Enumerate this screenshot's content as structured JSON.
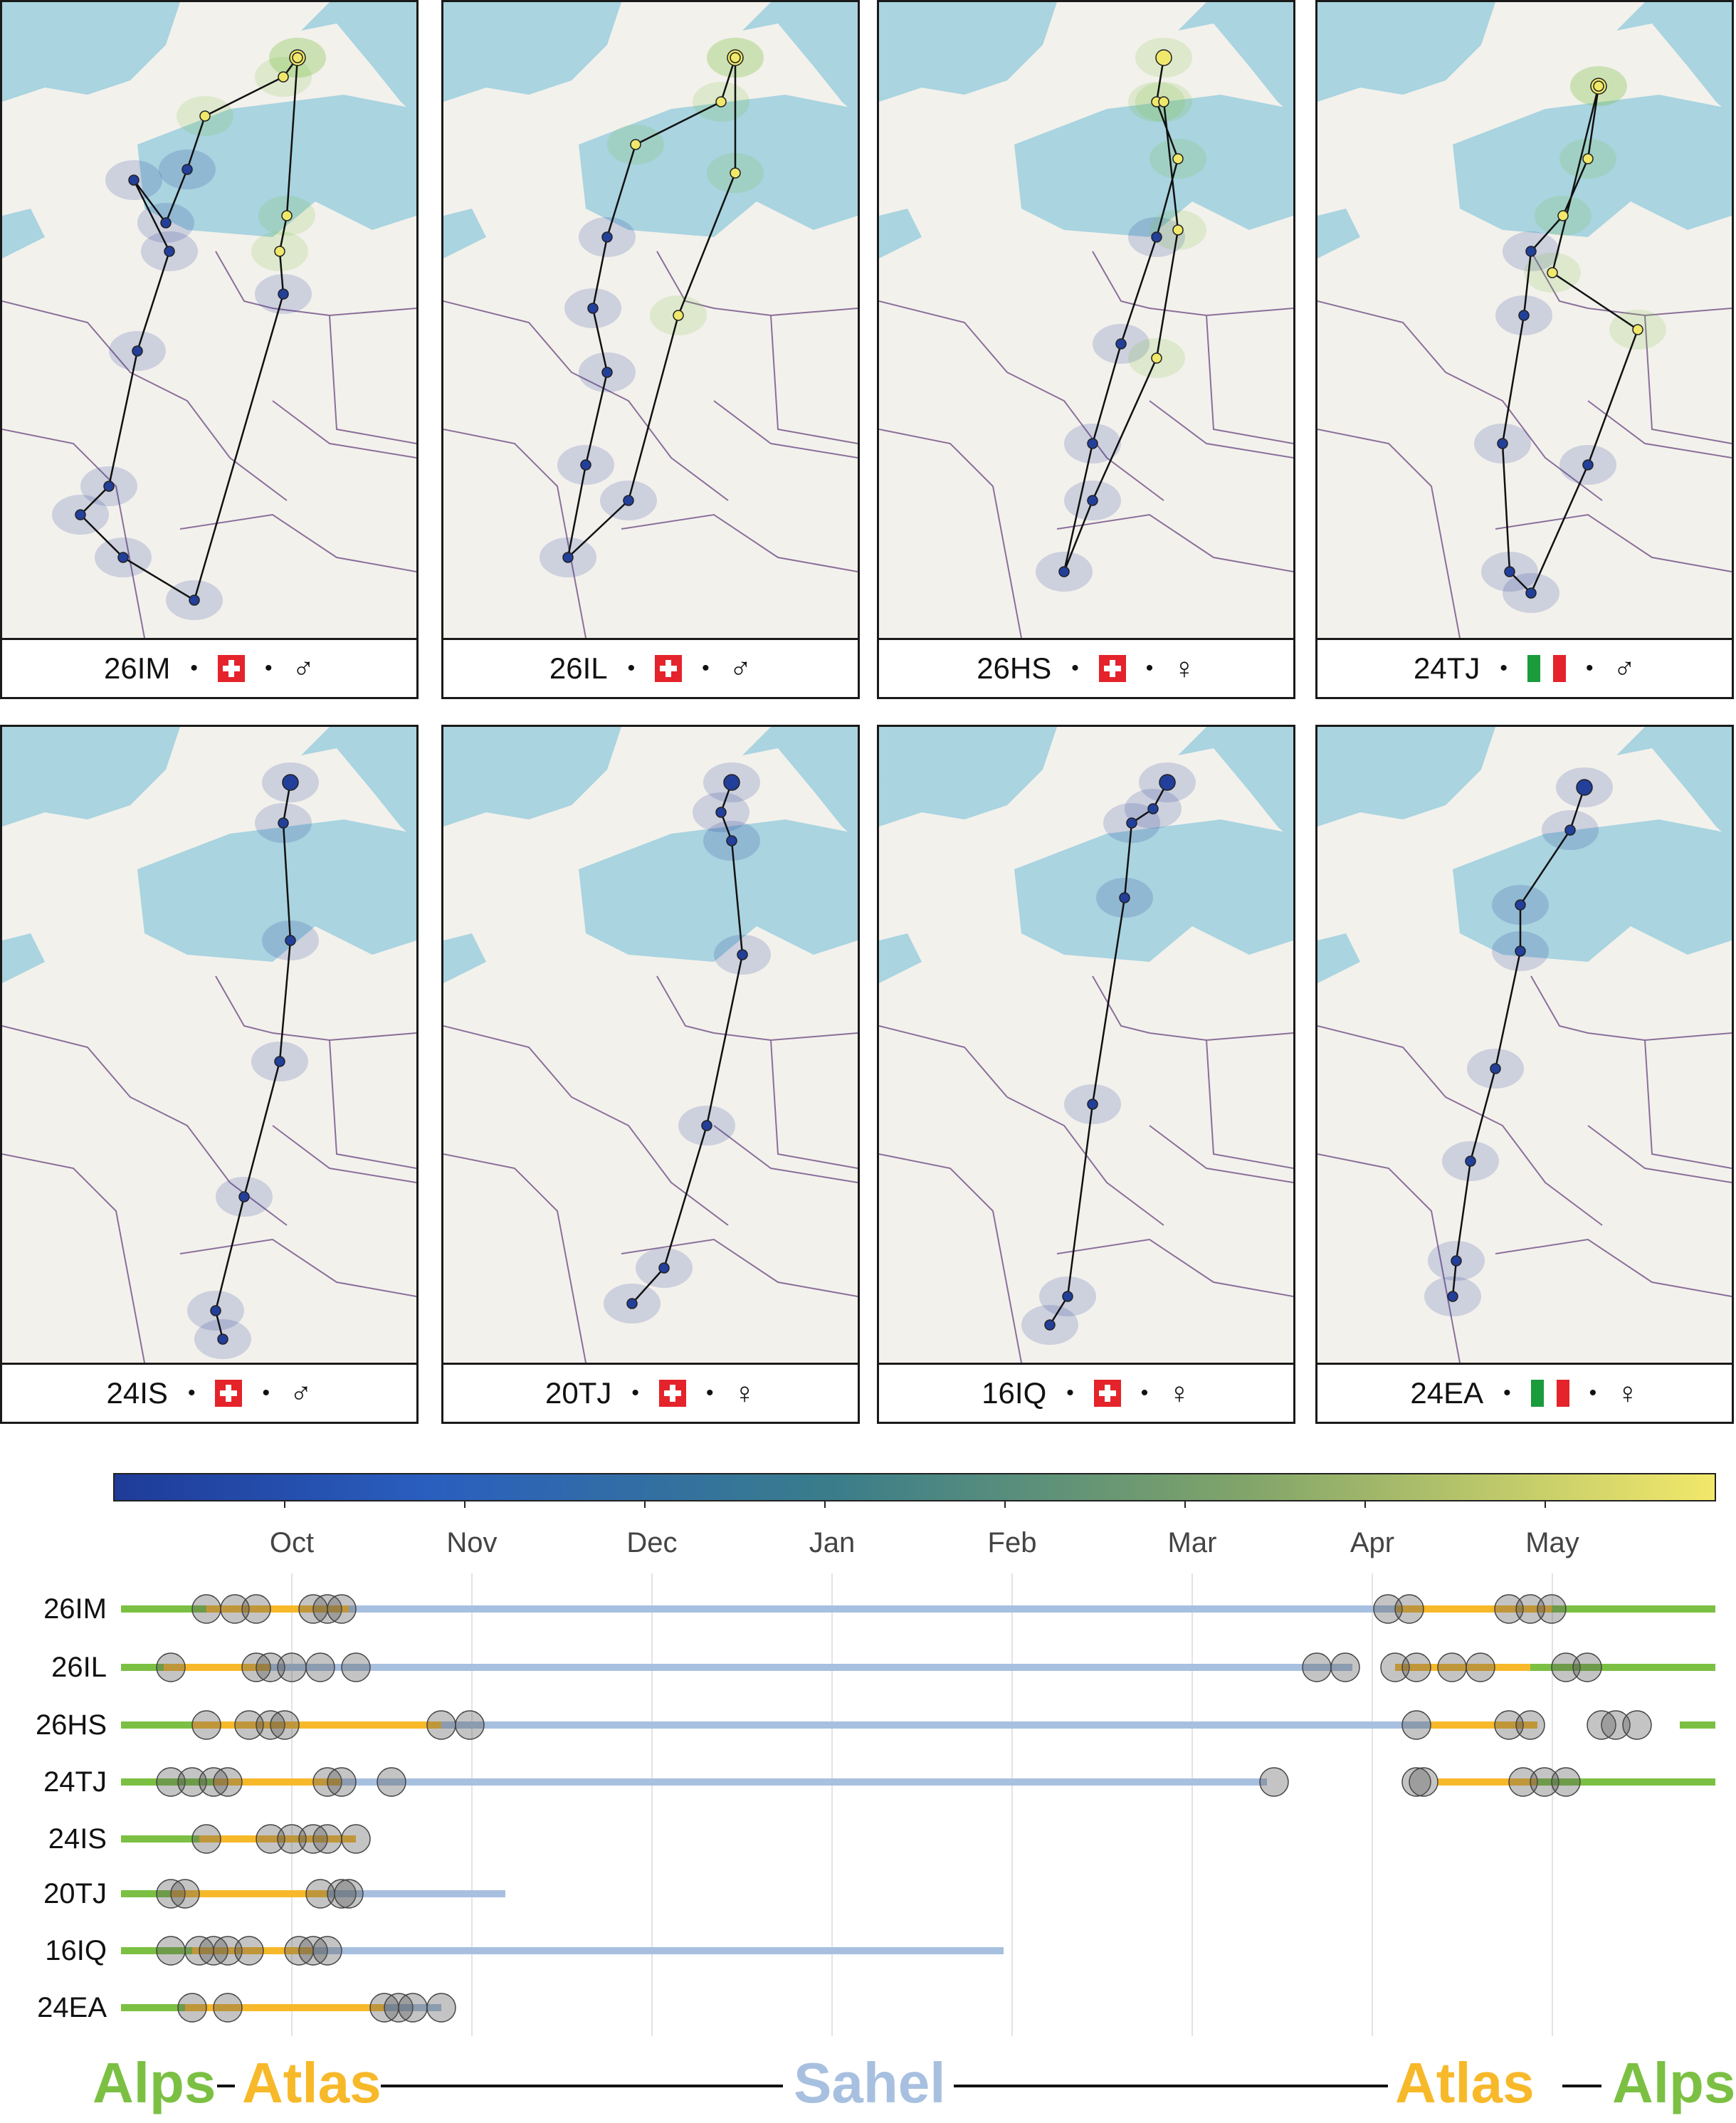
{
  "panels": [
    {
      "id": "26IM",
      "flag": "ch",
      "sex": "♂"
    },
    {
      "id": "26IL",
      "flag": "ch",
      "sex": "♂"
    },
    {
      "id": "26HS",
      "flag": "ch",
      "sex": "♀"
    },
    {
      "id": "24TJ",
      "flag": "it",
      "sex": "♂"
    },
    {
      "id": "24IS",
      "flag": "ch",
      "sex": "♂"
    },
    {
      "id": "20TJ",
      "flag": "ch",
      "sex": "♀"
    },
    {
      "id": "16IQ",
      "flag": "ch",
      "sex": "♀"
    },
    {
      "id": "24EA",
      "flag": "it",
      "sex": "♀"
    }
  ],
  "colors": {
    "blue": "#223f9a",
    "yellow": "#f0e86a",
    "green": "#7bc043",
    "atlas": "#f7b92a",
    "sahel": "#a8c0e0",
    "sea": "#a9d4e0",
    "land": "#f3f1ec",
    "border": "#8a6f9a"
  },
  "chart_data": {
    "type": "timeline",
    "months": [
      "Oct",
      "Nov",
      "Dec",
      "Jan",
      "Feb",
      "Mar",
      "Apr",
      "May"
    ],
    "birds": [
      "26IM",
      "26IL",
      "26HS",
      "24TJ",
      "24IS",
      "20TJ",
      "16IQ",
      "24EA"
    ],
    "legend": [
      "Alps",
      "Atlas",
      "Sahel",
      "Atlas",
      "Alps"
    ]
  }
}
